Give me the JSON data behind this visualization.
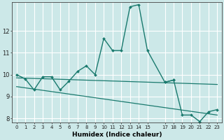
{
  "title": "",
  "xlabel": "Humidex (Indice chaleur)",
  "ylabel": "",
  "xlim": [
    -0.5,
    23.5
  ],
  "ylim": [
    7.8,
    13.3
  ],
  "bg_color": "#cce8e8",
  "line_color": "#1a7a6e",
  "grid_color": "#ffffff",
  "series1_x": [
    0,
    1,
    2,
    3,
    4,
    5,
    6,
    7,
    8,
    9,
    10,
    11,
    12,
    13,
    14,
    15,
    17,
    18
  ],
  "series1_y": [
    10.0,
    9.8,
    9.3,
    9.9,
    9.9,
    9.3,
    9.7,
    10.15,
    10.4,
    10.0,
    11.65,
    11.1,
    11.1,
    13.1,
    13.2,
    11.1,
    9.65,
    9.75
  ],
  "series2_x": [
    17,
    18,
    19,
    20,
    21,
    22,
    23
  ],
  "series2_y": [
    9.65,
    9.75,
    8.15,
    8.15,
    7.85,
    8.3,
    8.4
  ],
  "line1_x": [
    0,
    23
  ],
  "line1_y": [
    9.85,
    9.55
  ],
  "line2_x": [
    0,
    23
  ],
  "line2_y": [
    9.45,
    8.15
  ],
  "xticks": [
    0,
    1,
    2,
    3,
    4,
    5,
    6,
    7,
    8,
    9,
    10,
    11,
    12,
    13,
    14,
    15,
    17,
    18,
    19,
    20,
    21,
    22,
    23
  ],
  "xtick_labels": [
    "0",
    "1",
    "2",
    "3",
    "4",
    "5",
    "6",
    "7",
    "8",
    "9",
    "10",
    "11",
    "12",
    "13",
    "14",
    "15",
    "17",
    "18",
    "19",
    "20",
    "21",
    "22",
    "23"
  ],
  "yticks": [
    8,
    9,
    10,
    11,
    12
  ]
}
